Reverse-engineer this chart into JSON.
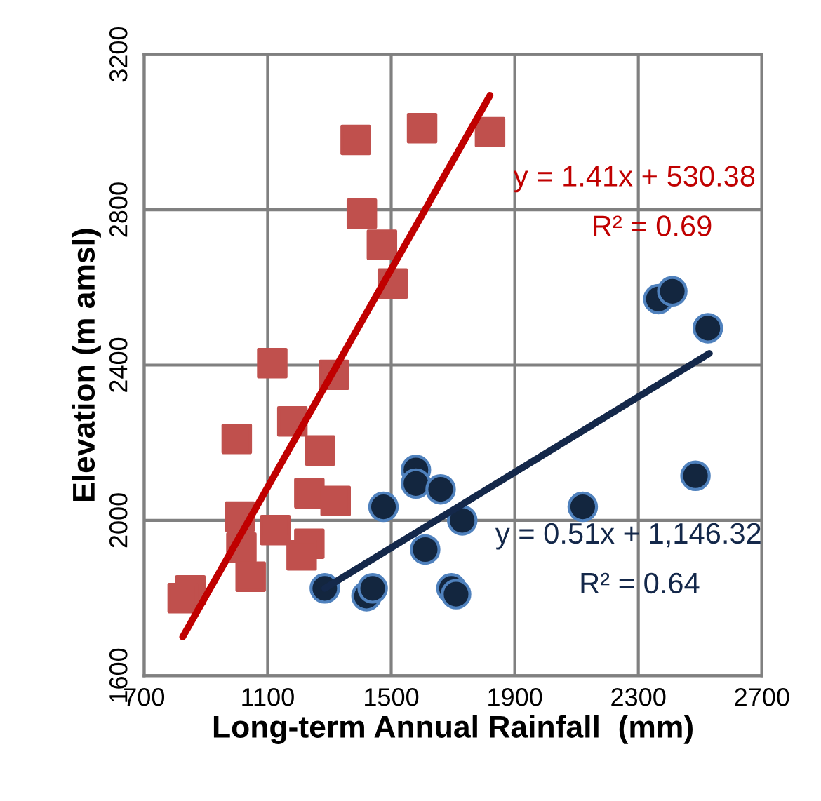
{
  "chart_data": {
    "type": "scatter",
    "xlabel": "Long-term Annual Rainfall  (mm)",
    "ylabel": "Elevation (m amsl)",
    "xlim": [
      700,
      2700
    ],
    "xticks": [
      700,
      1100,
      1500,
      1900,
      2300,
      2700
    ],
    "ylim": [
      1600,
      3200
    ],
    "yticks": [
      1600,
      2000,
      2400,
      2800,
      3200
    ],
    "grid": true,
    "series": [
      {
        "marker": "square",
        "color": "#c0504d",
        "x": [
          1385,
          1600,
          1820,
          1405,
          1470,
          1505,
          1115,
          1315,
          1180,
          1000,
          1270,
          1235,
          1320,
          1010,
          1125,
          1015,
          1235,
          1210,
          1045,
          850,
          825
        ],
        "values": [
          2980,
          3010,
          3000,
          2790,
          2710,
          2610,
          2405,
          2375,
          2255,
          2210,
          2180,
          2070,
          2050,
          2010,
          1975,
          1930,
          1940,
          1910,
          1855,
          1820,
          1800
        ]
      },
      {
        "marker": "circle",
        "color": "#13263f",
        "x": [
          1580,
          1580,
          1660,
          1475,
          1730,
          1610,
          1285,
          1420,
          1440,
          1695,
          1710,
          2120,
          2485,
          2365,
          2410,
          2525
        ],
        "values": [
          2130,
          2095,
          2080,
          2035,
          2000,
          1925,
          1825,
          1805,
          1825,
          1825,
          1810,
          2035,
          2115,
          2570,
          2590,
          2495
        ]
      },
      {
        "type": "line",
        "color": "#c00000",
        "x": [
          825,
          1820
        ],
        "values": [
          1700,
          3095
        ]
      },
      {
        "type": "line",
        "color": "#14284a",
        "x": [
          1285,
          2530
        ],
        "values": [
          1825,
          2430
        ]
      }
    ],
    "annotations": [
      "y = 1.41x + 530.38",
      "R² = 0.69",
      "y = 0.51x + 1,146.32",
      "R² = 0.64"
    ]
  }
}
